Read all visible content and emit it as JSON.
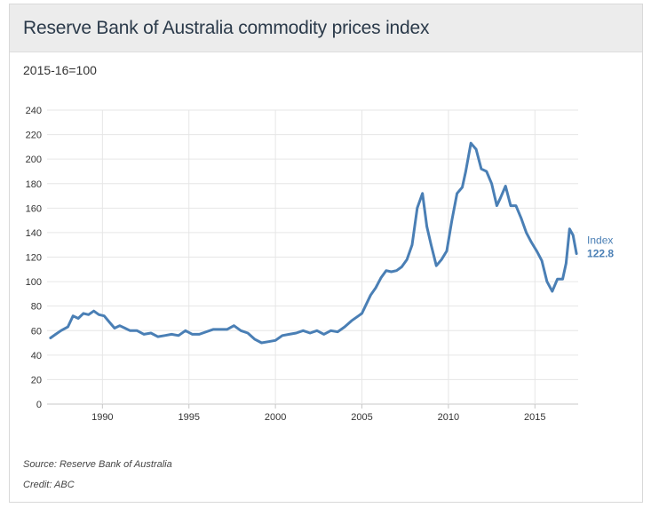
{
  "chart_data": {
    "type": "line",
    "title": "Reserve Bank of Australia commodity prices index",
    "subtitle": "2015-16=100",
    "xlabel": "",
    "ylabel": "",
    "xlim": [
      1986.8,
      2017.5
    ],
    "ylim": [
      0,
      240
    ],
    "yticks": [
      0,
      20,
      40,
      60,
      80,
      100,
      120,
      140,
      160,
      180,
      200,
      220,
      240
    ],
    "xticks": [
      1990,
      1995,
      2000,
      2005,
      2010,
      2015
    ],
    "grid": true,
    "series": [
      {
        "name": "Index",
        "last_value_label": "122.8",
        "x": [
          1987.0,
          1987.3,
          1987.6,
          1988.0,
          1988.3,
          1988.6,
          1988.9,
          1989.2,
          1989.5,
          1989.8,
          1990.1,
          1990.4,
          1990.7,
          1991.0,
          1991.3,
          1991.6,
          1992.0,
          1992.4,
          1992.8,
          1993.2,
          1993.6,
          1994.0,
          1994.4,
          1994.8,
          1995.2,
          1995.6,
          1996.0,
          1996.4,
          1996.8,
          1997.2,
          1997.6,
          1998.0,
          1998.4,
          1998.8,
          1999.2,
          1999.6,
          2000.0,
          2000.4,
          2000.8,
          2001.2,
          2001.6,
          2002.0,
          2002.4,
          2002.8,
          2003.2,
          2003.6,
          2004.0,
          2004.4,
          2004.8,
          2005.0,
          2005.2,
          2005.5,
          2005.8,
          2006.1,
          2006.4,
          2006.7,
          2007.0,
          2007.3,
          2007.6,
          2007.9,
          2008.2,
          2008.5,
          2008.75,
          2009.0,
          2009.3,
          2009.6,
          2009.9,
          2010.2,
          2010.5,
          2010.8,
          2011.0,
          2011.3,
          2011.6,
          2011.9,
          2012.2,
          2012.5,
          2012.8,
          2013.0,
          2013.3,
          2013.6,
          2013.9,
          2014.2,
          2014.5,
          2014.8,
          2015.1,
          2015.4,
          2015.7,
          2016.0,
          2016.3,
          2016.6,
          2016.8,
          2017.0,
          2017.2,
          2017.4
        ],
        "values": [
          54,
          57,
          60,
          63,
          72,
          70,
          74,
          73,
          76,
          73,
          72,
          67,
          62,
          64,
          62,
          60,
          60,
          57,
          58,
          55,
          56,
          57,
          56,
          60,
          57,
          57,
          59,
          61,
          61,
          61,
          64,
          60,
          58,
          53,
          50,
          51,
          52,
          56,
          57,
          58,
          60,
          58,
          60,
          57,
          60,
          59,
          63,
          68,
          72,
          74,
          80,
          89,
          95,
          103,
          109,
          108,
          109,
          112,
          118,
          130,
          160,
          172,
          145,
          130,
          113,
          118,
          125,
          150,
          172,
          177,
          190,
          213,
          208,
          192,
          190,
          180,
          162,
          168,
          178,
          162,
          162,
          152,
          140,
          132,
          125,
          117,
          100,
          92,
          102,
          102,
          115,
          143,
          138,
          122.8
        ]
      }
    ]
  },
  "footer": {
    "source": "Source: Reserve Bank of Australia",
    "credit": "Credit: ABC"
  }
}
